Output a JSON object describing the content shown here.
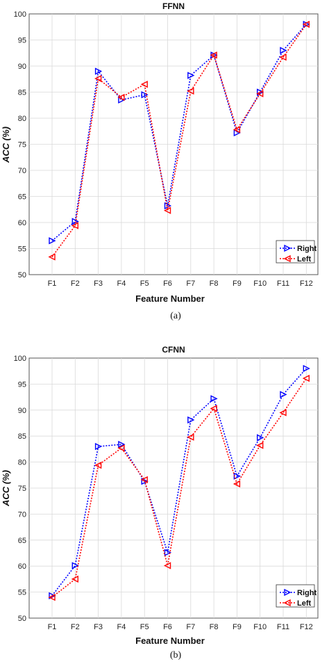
{
  "chart_data": [
    {
      "type": "line",
      "title": "FFNN",
      "xlabel": "Feature Number",
      "ylabel": "ACC (%)",
      "caption": "(a)",
      "categories": [
        "F1",
        "F2",
        "F3",
        "F4",
        "F5",
        "F6",
        "F7",
        "F8",
        "F9",
        "F10",
        "F11",
        "F12"
      ],
      "ylim": [
        50,
        100
      ],
      "yticks": [
        "50",
        "55",
        "60",
        "65",
        "70",
        "75",
        "80",
        "85",
        "90",
        "95",
        "100"
      ],
      "grid": true,
      "legend_position": "bottom-right",
      "series": [
        {
          "name": "Right",
          "color": "#0000ff",
          "marker": "triangle-right",
          "values": [
            56.5,
            60.2,
            89.0,
            83.5,
            84.5,
            63.2,
            88.2,
            92.1,
            77.2,
            85.0,
            93.0,
            98.0
          ]
        },
        {
          "name": "Left",
          "color": "#ff0000",
          "marker": "triangle-left",
          "values": [
            53.4,
            59.4,
            87.6,
            84.0,
            86.5,
            62.3,
            85.2,
            92.1,
            77.8,
            84.7,
            91.7,
            98.0
          ]
        }
      ]
    },
    {
      "type": "line",
      "title": "CFNN",
      "xlabel": "Feature Number",
      "ylabel": "ACC (%)",
      "caption": "(b)",
      "categories": [
        "F1",
        "F2",
        "F3",
        "F4",
        "F5",
        "F6",
        "F7",
        "F8",
        "F9",
        "F10",
        "F11",
        "F12"
      ],
      "ylim": [
        50,
        100
      ],
      "yticks": [
        "50",
        "55",
        "60",
        "65",
        "70",
        "75",
        "80",
        "85",
        "90",
        "95",
        "100"
      ],
      "grid": true,
      "legend_position": "bottom-right",
      "series": [
        {
          "name": "Right",
          "color": "#0000ff",
          "marker": "triangle-right",
          "values": [
            54.3,
            60.1,
            83.0,
            83.4,
            76.3,
            62.6,
            88.1,
            92.2,
            77.3,
            84.7,
            93.0,
            98.0
          ]
        },
        {
          "name": "Left",
          "color": "#ff0000",
          "marker": "triangle-left",
          "values": [
            54.0,
            57.5,
            79.4,
            82.7,
            76.6,
            60.1,
            84.8,
            90.3,
            75.8,
            83.2,
            89.5,
            96.1
          ]
        }
      ]
    }
  ]
}
